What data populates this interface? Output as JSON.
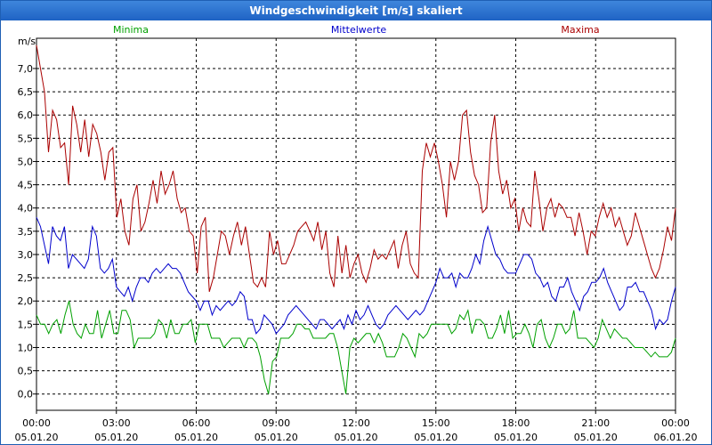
{
  "window": {
    "title": "Windgeschwindigkeit [m/s] skaliert"
  },
  "chart_data": {
    "type": "line",
    "title": "Windgeschwindigkeit [m/s] skaliert",
    "ylabel": "m/s",
    "xlabel": "",
    "ylim": [
      -0.35,
      7.65
    ],
    "xlim": [
      0,
      24
    ],
    "grid": true,
    "y_ticks": [
      "0,0",
      "0,5",
      "1,0",
      "1,5",
      "2,0",
      "2,5",
      "3,0",
      "3,5",
      "4,0",
      "4,5",
      "5,0",
      "5,5",
      "6,0",
      "6,5",
      "7,0"
    ],
    "x_ticks": [
      {
        "time": "00:00",
        "date": "05.01.20"
      },
      {
        "time": "03:00",
        "date": "05.01.20"
      },
      {
        "time": "06:00",
        "date": "05.01.20"
      },
      {
        "time": "09:00",
        "date": "05.01.20"
      },
      {
        "time": "12:00",
        "date": "05.01.20"
      },
      {
        "time": "15:00",
        "date": "05.01.20"
      },
      {
        "time": "18:00",
        "date": "05.01.20"
      },
      {
        "time": "21:00",
        "date": "05.01.20"
      },
      {
        "time": "00:00",
        "date": "06.01.20"
      }
    ],
    "series": [
      {
        "name": "Minima",
        "color": "#00a000",
        "values": [
          1.7,
          1.5,
          1.5,
          1.3,
          1.5,
          1.6,
          1.3,
          1.7,
          2.0,
          1.5,
          1.3,
          1.2,
          1.5,
          1.3,
          1.3,
          1.8,
          1.2,
          1.5,
          1.8,
          1.3,
          1.3,
          1.8,
          1.8,
          1.6,
          1.0,
          1.2,
          1.2,
          1.2,
          1.2,
          1.3,
          1.6,
          1.5,
          1.2,
          1.6,
          1.3,
          1.3,
          1.5,
          1.5,
          1.6,
          1.1,
          1.5,
          1.5,
          1.5,
          1.2,
          1.2,
          1.2,
          1.0,
          1.1,
          1.2,
          1.2,
          1.2,
          1.0,
          1.2,
          1.2,
          1.1,
          0.8,
          0.3,
          0.0,
          0.7,
          0.8,
          1.2,
          1.2,
          1.2,
          1.3,
          1.5,
          1.5,
          1.4,
          1.4,
          1.2,
          1.2,
          1.2,
          1.2,
          1.3,
          1.3,
          1.0,
          0.5,
          0.0,
          1.0,
          1.2,
          1.1,
          1.2,
          1.3,
          1.3,
          1.1,
          1.3,
          1.1,
          0.8,
          0.8,
          0.8,
          1.0,
          1.3,
          1.2,
          1.0,
          0.8,
          1.3,
          1.2,
          1.3,
          1.5,
          1.5,
          1.5,
          1.5,
          1.5,
          1.3,
          1.4,
          1.7,
          1.6,
          1.8,
          1.3,
          1.6,
          1.6,
          1.5,
          1.2,
          1.2,
          1.4,
          1.7,
          1.3,
          1.8,
          1.2,
          1.3,
          1.3,
          1.5,
          1.3,
          1.0,
          1.5,
          1.6,
          1.2,
          1.0,
          1.2,
          1.5,
          1.5,
          1.3,
          1.4,
          1.8,
          1.2,
          1.2,
          1.2,
          1.1,
          1.0,
          1.2,
          1.6,
          1.4,
          1.2,
          1.4,
          1.3,
          1.2,
          1.2,
          1.1,
          1.0,
          1.0,
          1.0,
          0.9,
          0.8,
          0.9,
          0.8,
          0.8,
          0.8,
          0.9,
          1.2
        ]
      },
      {
        "name": "Mittelwerte",
        "color": "#0000cc",
        "values": [
          3.8,
          3.6,
          3.2,
          2.8,
          3.6,
          3.4,
          3.3,
          3.6,
          2.7,
          3.0,
          2.9,
          2.8,
          2.7,
          2.9,
          3.6,
          3.4,
          2.7,
          2.6,
          2.7,
          2.9,
          2.3,
          2.2,
          2.1,
          2.3,
          2.0,
          2.3,
          2.5,
          2.5,
          2.4,
          2.6,
          2.7,
          2.6,
          2.7,
          2.8,
          2.7,
          2.7,
          2.6,
          2.4,
          2.2,
          2.1,
          2.0,
          1.8,
          2.0,
          2.0,
          1.7,
          1.9,
          1.8,
          1.9,
          2.0,
          1.9,
          2.0,
          2.2,
          2.1,
          1.6,
          1.6,
          1.3,
          1.4,
          1.7,
          1.6,
          1.5,
          1.3,
          1.4,
          1.5,
          1.7,
          1.8,
          1.9,
          1.8,
          1.7,
          1.6,
          1.5,
          1.4,
          1.6,
          1.6,
          1.5,
          1.4,
          1.5,
          1.6,
          1.4,
          1.7,
          1.5,
          1.8,
          1.6,
          1.7,
          1.9,
          1.7,
          1.5,
          1.4,
          1.5,
          1.7,
          1.8,
          1.9,
          1.8,
          1.7,
          1.6,
          1.7,
          1.8,
          1.7,
          1.8,
          2.0,
          2.2,
          2.4,
          2.7,
          2.5,
          2.5,
          2.6,
          2.3,
          2.6,
          2.5,
          2.5,
          2.7,
          3.0,
          2.8,
          3.3,
          3.6,
          3.3,
          3.0,
          2.9,
          2.7,
          2.6,
          2.6,
          2.6,
          2.8,
          3.0,
          3.0,
          2.9,
          2.6,
          2.5,
          2.3,
          2.4,
          2.1,
          2.0,
          2.3,
          2.3,
          2.5,
          2.2,
          2.0,
          1.8,
          2.1,
          2.2,
          2.4,
          2.4,
          2.5,
          2.7,
          2.4,
          2.2,
          2.0,
          1.8,
          1.9,
          2.3,
          2.3,
          2.4,
          2.2,
          2.2,
          2.0,
          1.8,
          1.4,
          1.6,
          1.5,
          1.6,
          2.0,
          2.3
        ]
      },
      {
        "name": "Maxima",
        "color": "#aa0000",
        "values": [
          7.5,
          7.0,
          6.5,
          5.2,
          6.1,
          5.9,
          5.3,
          5.4,
          4.5,
          6.2,
          5.8,
          5.2,
          5.9,
          5.1,
          5.8,
          5.6,
          5.2,
          4.6,
          5.2,
          5.3,
          3.8,
          4.2,
          3.5,
          3.2,
          4.2,
          4.5,
          3.5,
          3.7,
          4.1,
          4.6,
          4.1,
          4.8,
          4.3,
          4.5,
          4.8,
          4.2,
          3.9,
          4.0,
          3.5,
          3.4,
          2.6,
          3.6,
          3.8,
          2.2,
          2.5,
          3.0,
          3.5,
          3.4,
          3.0,
          3.4,
          3.7,
          3.2,
          3.6,
          3.0,
          2.4,
          2.3,
          2.5,
          2.3,
          3.5,
          3.0,
          3.3,
          2.8,
          2.8,
          3.0,
          3.2,
          3.5,
          3.6,
          3.7,
          3.5,
          3.3,
          3.7,
          3.1,
          3.5,
          2.6,
          2.3,
          3.4,
          2.6,
          3.2,
          2.5,
          2.8,
          3.0,
          2.6,
          2.4,
          2.7,
          3.1,
          2.9,
          3.0,
          2.9,
          3.1,
          3.3,
          2.7,
          3.2,
          3.5,
          2.8,
          2.6,
          2.5,
          4.8,
          5.4,
          5.1,
          5.4,
          5.0,
          4.5,
          3.8,
          5.0,
          4.6,
          5.0,
          6.0,
          6.1,
          5.2,
          4.7,
          4.5,
          3.9,
          4.0,
          5.4,
          6.0,
          4.8,
          4.3,
          4.6,
          4.0,
          4.2,
          3.5,
          4.0,
          3.7,
          3.6,
          4.8,
          4.2,
          3.5,
          4.0,
          4.2,
          3.8,
          4.1,
          4.0,
          3.8,
          3.8,
          3.4,
          3.9,
          3.5,
          3.0,
          3.5,
          3.4,
          3.8,
          4.1,
          3.8,
          4.0,
          3.6,
          3.8,
          3.5,
          3.2,
          3.4,
          3.9,
          3.6,
          3.3,
          3.0,
          2.7,
          2.5,
          2.7,
          3.1,
          3.6,
          3.3,
          4.0
        ]
      }
    ]
  }
}
